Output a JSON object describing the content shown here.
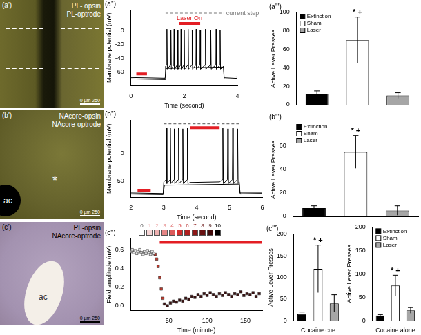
{
  "images": [
    {
      "panel": "(a')",
      "labels": [
        "PL- opsin",
        "PL-optrode"
      ],
      "marks": [],
      "scale_bar": "0 µm 250"
    },
    {
      "panel": "(b')",
      "labels": [
        "NAcore-opsin",
        "NAcore-optrode"
      ],
      "marks": [
        "ac",
        "*"
      ],
      "scale_bar": "0 µm 250"
    },
    {
      "panel": "(c')",
      "labels": [
        "PL-opsin",
        "NAcore-optrode"
      ],
      "marks": [
        "ac"
      ],
      "scale_bar": "0 µm 250"
    }
  ],
  "chart_data": [
    {
      "type": "line",
      "title": "(a'')",
      "xlabel": "Time (second)",
      "ylabel": "Membrane potential (mV)",
      "xlim": [
        0,
        4
      ],
      "ylim": [
        -80,
        30
      ],
      "xticks": [
        0,
        2,
        4
      ],
      "yticks": [
        -60,
        -40,
        -20,
        0
      ],
      "grid": false,
      "series": [
        {
          "color": "#000000",
          "x": [
            0,
            1.28,
            1.3,
            1.34,
            1.35,
            1.365,
            1.49,
            1.5,
            1.515,
            1.61,
            1.62,
            1.635,
            1.74,
            1.75,
            1.765,
            1.87,
            1.88,
            1.895,
            1.99,
            2.0,
            2.015,
            2.14,
            2.15,
            2.165,
            2.29,
            2.3,
            2.315,
            2.44,
            2.45,
            2.465,
            2.59,
            2.6,
            2.615,
            2.79,
            2.8,
            2.815,
            2.99,
            3.0,
            3.015,
            3.19,
            3.2,
            3.215,
            3.34,
            3.35,
            3.365,
            3.48,
            3.5,
            4
          ],
          "values": [
            -70,
            -71,
            -52,
            -50,
            2,
            -56,
            -50,
            1,
            -56,
            -50,
            2,
            -56,
            -50,
            1,
            -56,
            -50,
            2,
            -56,
            -50,
            1,
            -56,
            -50,
            2,
            -56,
            -50,
            1,
            -56,
            -50,
            2,
            -56,
            -50,
            1,
            -56,
            -50,
            2,
            -56,
            -50,
            1,
            -56,
            -50,
            2,
            -56,
            -50,
            1,
            -56,
            -52,
            -68,
            -67
          ]
        },
        {
          "color": "#000000",
          "x": [
            0,
            1.28,
            1.32,
            3.48,
            3.5,
            4
          ],
          "values": [
            -68,
            -69,
            -55,
            -53,
            -70,
            -69
          ]
        }
      ],
      "segments": [
        {
          "x": [
            0.2,
            0.6
          ],
          "y": -63,
          "color": "#e31e24"
        },
        {
          "x": [
            1.8,
            2.6
          ],
          "y": 10,
          "color": "#e31e24",
          "label": "Laser On"
        },
        {
          "x": [
            1.3,
            3.5
          ],
          "y": 25,
          "color": "#777777",
          "line_style": "dashed",
          "label": "current step"
        }
      ]
    },
    {
      "type": "line",
      "title": "(b'')",
      "xlabel": "Time (second)",
      "ylabel": "Membrane potential (mV)",
      "xlim": [
        2,
        6
      ],
      "ylim": [
        -80,
        60
      ],
      "xticks": [
        2,
        3,
        4,
        5,
        6
      ],
      "yticks": [
        -50,
        0
      ],
      "grid": false,
      "series": [
        {
          "color": "#000000",
          "x": [
            2,
            2.98,
            3.0,
            3.07,
            3.08,
            3.095,
            3.19,
            3.2,
            3.215,
            3.31,
            3.32,
            3.335,
            3.44,
            3.45,
            3.465,
            3.57,
            3.58,
            3.595,
            3.71,
            3.72,
            3.735,
            3.8,
            4.7,
            4.79,
            4.8,
            4.815,
            4.94,
            4.95,
            4.965,
            5.09,
            5.1,
            5.115,
            5.24,
            5.25,
            5.265,
            5.3,
            5.32,
            6
          ],
          "values": [
            -72,
            -73,
            -52,
            -48,
            45,
            -55,
            -48,
            45,
            -55,
            -48,
            44,
            -55,
            -48,
            45,
            -55,
            -48,
            44,
            -55,
            -48,
            45,
            -55,
            -53,
            -52,
            -48,
            45,
            -55,
            -48,
            44,
            -55,
            -48,
            45,
            -55,
            -48,
            44,
            -55,
            -52,
            -72,
            -72
          ]
        },
        {
          "color": "#000000",
          "x": [
            2,
            2.98,
            3.02,
            5.3,
            5.33,
            6
          ],
          "values": [
            -74,
            -75,
            -58,
            -56,
            -74,
            -73
          ]
        }
      ],
      "segments": [
        {
          "x": [
            2.2,
            2.6
          ],
          "y": -67,
          "color": "#e31e24"
        },
        {
          "x": [
            3.0,
            5.3
          ],
          "y": 53,
          "color": "#777777",
          "line_style": "dashed"
        },
        {
          "x": [
            3.8,
            4.7
          ],
          "y": 46,
          "color": "#e31e24"
        }
      ]
    },
    {
      "type": "scatter",
      "title": "(c'')",
      "xlabel": "Time (minute)",
      "ylabel": "Field amplitude (mV)",
      "xlim": [
        0,
        172
      ],
      "ylim": [
        -0.05,
        0.72
      ],
      "xticks": [
        50,
        100,
        150
      ],
      "yticks": [
        {
          "value": 0,
          "label": "0.0"
        },
        {
          "value": 0.2,
          "label": "0.2"
        },
        {
          "value": 0.4,
          "label": "0.4"
        },
        {
          "value": 0.6,
          "label": "0.6"
        }
      ],
      "grid": false,
      "marker": "square",
      "series": [
        {
          "color": "#e6e6e6",
          "x": [
            0,
            2,
            4,
            6,
            8,
            10,
            12,
            14,
            16,
            18,
            20,
            22,
            24,
            26,
            28,
            30
          ],
          "values": [
            0.58,
            0.6,
            0.57,
            0.59,
            0.56,
            0.58,
            0.6,
            0.57,
            0.55,
            0.58,
            0.56,
            0.59,
            0.57,
            0.55,
            0.58,
            0.56
          ]
        },
        {
          "color": "#c0392b",
          "x": [
            32,
            34,
            36,
            38,
            40,
            42
          ],
          "values": [
            0.55,
            0.5,
            0.42,
            0.3,
            0.18,
            0.08
          ]
        },
        {
          "color": "#3b1010",
          "x": [
            44,
            48,
            52,
            56,
            60,
            64,
            68,
            72,
            76,
            80,
            84,
            88,
            92,
            96,
            100,
            104,
            108,
            112,
            116,
            120,
            124,
            128,
            132,
            136,
            140,
            144,
            148,
            152,
            156,
            160,
            164,
            168
          ],
          "values": [
            0.02,
            0.0,
            0.03,
            0.05,
            0.04,
            0.06,
            0.05,
            0.08,
            0.07,
            0.1,
            0.09,
            0.12,
            0.1,
            0.13,
            0.11,
            0.14,
            0.12,
            0.1,
            0.13,
            0.11,
            0.14,
            0.12,
            0.1,
            0.13,
            0.12,
            0.15,
            0.11,
            0.13,
            0.12,
            0.14,
            0.1,
            0.13
          ]
        }
      ],
      "segments": [
        {
          "x": [
            38,
            172
          ],
          "y": 0.68,
          "color": "#e31e24"
        }
      ],
      "color_key": {
        "labels": [
          0,
          1,
          2,
          3,
          4,
          5,
          6,
          7,
          8,
          9,
          10
        ],
        "colors": [
          "#ffffff",
          "#f6d5d5",
          "#eeb0b0",
          "#e58585",
          "#dc5a5a",
          "#d22b2b",
          "#b01f1f",
          "#8c1717",
          "#671111",
          "#420b0b",
          "#000000"
        ]
      }
    },
    {
      "type": "bar",
      "title": "(a''')",
      "ylabel": "Active Lever Presses",
      "categories": [
        "Extinction",
        "Sham",
        "Laser"
      ],
      "values": [
        12,
        70,
        10
      ],
      "errors": [
        3,
        25,
        3
      ],
      "colors": [
        "#000000",
        "#ffffff",
        "#a6a6a6"
      ],
      "ylim": [
        0,
        100
      ],
      "yticks": [
        0,
        20,
        40,
        60,
        80,
        100
      ],
      "grid": false,
      "tick_labels": "y",
      "legend": "top-left",
      "annotations": [
        {
          "category": "Sham",
          "text": "* +"
        }
      ]
    },
    {
      "type": "bar",
      "title": "(b''')",
      "ylabel": "Active Lever Presses",
      "categories": [
        "Extinction",
        "Sham",
        "Laser"
      ],
      "values": [
        7,
        55,
        5
      ],
      "errors": [
        2,
        14,
        4
      ],
      "colors": [
        "#000000",
        "#ffffff",
        "#a6a6a6"
      ],
      "ylim": [
        0,
        80
      ],
      "yticks": [
        0,
        20,
        40,
        60
      ],
      "grid": false,
      "tick_labels": "y",
      "legend": "top-left",
      "annotations": [
        {
          "category": "Sham",
          "text": "* +"
        }
      ]
    },
    {
      "type": "bar",
      "title": "(c''')",
      "ylabel": "Active Lever Presses",
      "xlabel": "Cocaine cue",
      "categories": [
        "Extinction",
        "Sham",
        "Laser"
      ],
      "values": [
        16,
        120,
        40
      ],
      "errors": [
        4,
        55,
        20
      ],
      "colors": [
        "#000000",
        "#ffffff",
        "#a6a6a6"
      ],
      "ylim": [
        0,
        200
      ],
      "yticks": [
        0,
        50,
        100,
        150,
        200
      ],
      "grid": false,
      "tick_labels": "y",
      "annotations": [
        {
          "category": "Sham",
          "text": "* +"
        }
      ]
    },
    {
      "type": "bar",
      "ylabel": "Active Lever Presses",
      "xlabel": "Cocaine alone",
      "categories": [
        "Extinction",
        "Sham",
        "Laser"
      ],
      "values": [
        11,
        75,
        22
      ],
      "errors": [
        2,
        22,
        6
      ],
      "colors": [
        "#000000",
        "#ffffff",
        "#a6a6a6"
      ],
      "ylim": [
        0,
        200
      ],
      "yticks": [
        0,
        50,
        100,
        150,
        200
      ],
      "grid": false,
      "tick_labels": "y",
      "legend": "top-left",
      "annotations": [
        {
          "category": "Sham",
          "text": "* +"
        }
      ]
    }
  ]
}
